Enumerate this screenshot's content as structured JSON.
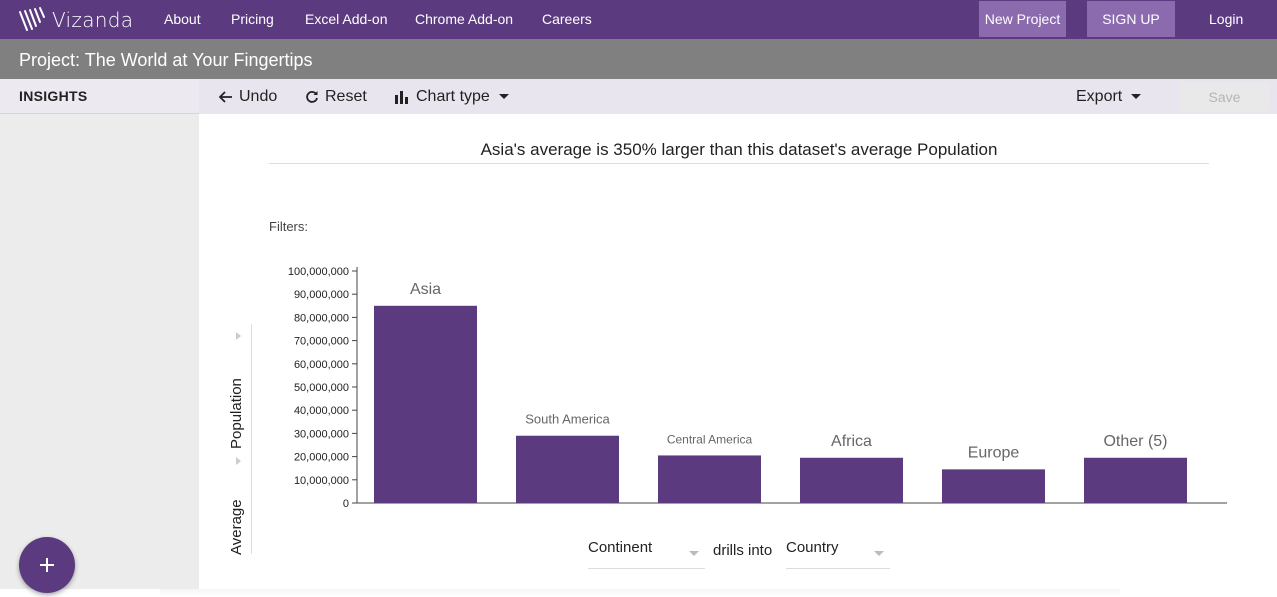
{
  "nav": {
    "logo_text": "Vizanda",
    "links": [
      "About",
      "Pricing",
      "Excel Add-on",
      "Chrome Add-on",
      "Careers"
    ],
    "new_project": "New Project",
    "sign_up": "SIGN UP",
    "login": "Login"
  },
  "project": {
    "title": "Project: The World at Your Fingertips"
  },
  "sidebar": {
    "heading": "INSIGHTS",
    "fab_icon": "plus-icon"
  },
  "toolbar": {
    "undo": "Undo",
    "reset": "Reset",
    "chart_type": "Chart type",
    "export": "Export",
    "save": "Save"
  },
  "insight": {
    "headline": "Asia's average is 350% larger than this dataset's average Population",
    "filters_label": "Filters:",
    "y_label_top": "Population",
    "y_label_bottom": "Average",
    "drill_from": "Continent",
    "drills_into": "drills into",
    "drill_to": "Country"
  },
  "colors": {
    "brand": "#5b3a80",
    "bar": "#5b3a80",
    "button": "#8b6aae"
  },
  "chart_data": {
    "type": "bar",
    "categories": [
      "Asia",
      "South America",
      "Central America",
      "Africa",
      "Europe",
      "Other (5)"
    ],
    "values": [
      85000000,
      29000000,
      20500000,
      19500000,
      14500000,
      19500000
    ],
    "ylim": [
      0,
      100000000
    ],
    "yticks": [
      "0",
      "10,000,000",
      "20,000,000",
      "30,000,000",
      "40,000,000",
      "50,000,000",
      "60,000,000",
      "70,000,000",
      "80,000,000",
      "90,000,000",
      "100,000,000"
    ],
    "title": "",
    "xlabel": "Continent",
    "ylabel": "Average Population"
  }
}
